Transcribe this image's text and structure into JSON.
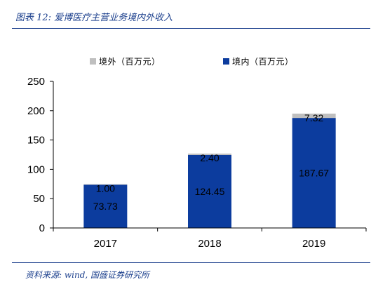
{
  "figure": {
    "title": "图表 12: 爱博医疗主营业务境内外收入",
    "source": "资料来源: wind, 国盛证券研究所"
  },
  "colors": {
    "domestic": "#0c3c9e",
    "overseas": "#bfbfbf",
    "accent": "#1a3e8c"
  },
  "chart_data": {
    "type": "bar",
    "stacked": true,
    "categories": [
      "2017",
      "2018",
      "2019"
    ],
    "series": [
      {
        "name": "境内（百万元）",
        "values": [
          73.73,
          124.45,
          187.67
        ],
        "labels": [
          "73.73",
          "124.45",
          "187.67"
        ]
      },
      {
        "name": "境外（百万元）",
        "values": [
          1.0,
          2.4,
          7.32
        ],
        "labels": [
          "1.00",
          "2.40",
          "7.32"
        ]
      }
    ],
    "ylim": [
      0,
      250
    ],
    "yticks": [
      "0",
      "50",
      "100",
      "150",
      "200",
      "250"
    ],
    "legend": "top",
    "grid": false
  }
}
